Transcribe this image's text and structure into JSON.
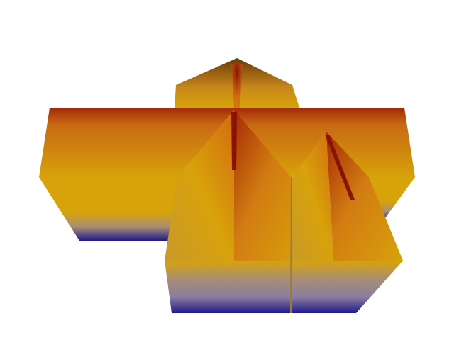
{
  "scene": {
    "background": "#ffffff",
    "colormap": {
      "low": "#1e1a8a",
      "mid_low": "#a88f74",
      "mid": "#d7a20a",
      "high": "#a42a05",
      "peak": "#8a1203"
    }
  }
}
